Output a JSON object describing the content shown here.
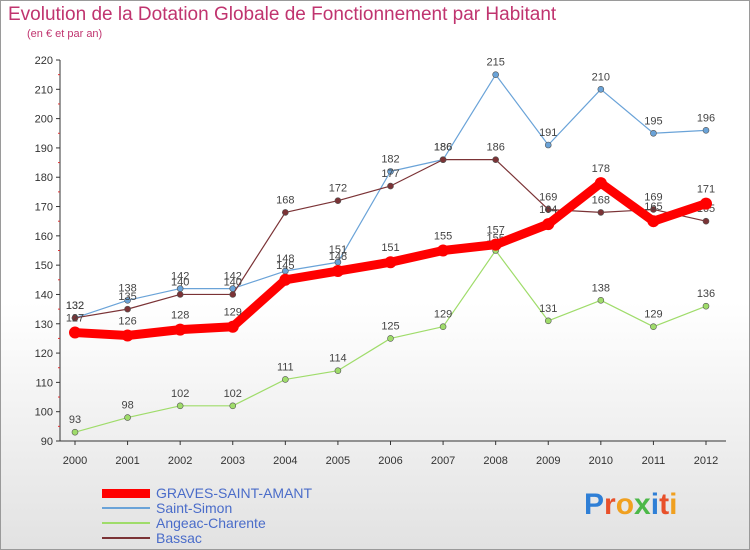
{
  "title": "Evolution de la Dotation Globale de Fonctionnement par Habitant",
  "subtitle": "(en € et par an)",
  "logo_text": "Proxiti",
  "chart_data": {
    "type": "line",
    "title": "Evolution de la Dotation Globale de Fonctionnement par Habitant",
    "subtitle": "(en € et par an)",
    "x": [
      2000,
      2001,
      2002,
      2003,
      2004,
      2005,
      2006,
      2007,
      2008,
      2009,
      2010,
      2011,
      2012
    ],
    "ylim": [
      90,
      220
    ],
    "yticks": [
      90,
      100,
      110,
      120,
      130,
      140,
      150,
      160,
      170,
      180,
      190,
      200,
      210,
      220
    ],
    "grid": false,
    "legend_position": "bottom-left",
    "series": [
      {
        "name": "GRAVES-SAINT-AMANT",
        "color": "#ff0000",
        "values": [
          127,
          126,
          128,
          129,
          145,
          148,
          151,
          155,
          157,
          164,
          178,
          165,
          171
        ],
        "labels": [
          "127",
          "126",
          "128",
          "129",
          "145",
          "148",
          "151",
          "155",
          "157",
          "164",
          "178",
          "165",
          "171"
        ]
      },
      {
        "name": "Saint-Simon",
        "color": "#6aa3d8",
        "values": [
          132,
          138,
          142,
          142,
          148,
          151,
          182,
          186,
          215,
          191,
          210,
          195,
          196
        ],
        "labels": [
          "132",
          "138",
          "142",
          "142",
          "148",
          "151",
          "182",
          "186",
          "215",
          "191",
          "210",
          "195",
          "196"
        ]
      },
      {
        "name": "Angeac-Charente",
        "color": "#9fdc6a",
        "values": [
          93,
          98,
          102,
          102,
          111,
          114,
          125,
          129,
          155,
          131,
          138,
          129,
          136
        ],
        "labels": [
          "93",
          "98",
          "102",
          "102",
          "111",
          "114",
          "125",
          "129",
          "155",
          "131",
          "138",
          "129",
          "136"
        ]
      },
      {
        "name": "Bassac",
        "color": "#7b3336",
        "values": [
          132,
          135,
          140,
          140,
          168,
          172,
          177,
          186,
          186,
          169,
          168,
          169,
          165
        ],
        "labels": [
          "132",
          "135",
          "140",
          "140",
          "168",
          "172",
          "177",
          "186",
          "186",
          "169",
          "168",
          "169",
          "165"
        ]
      }
    ]
  }
}
